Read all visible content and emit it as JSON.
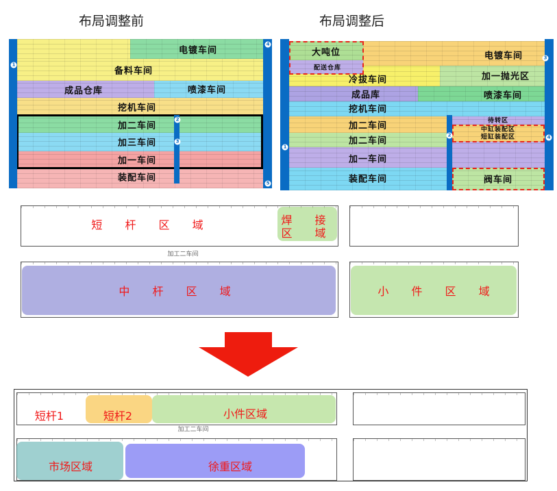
{
  "titles": {
    "before": "布局调整前",
    "after": "布局调整后"
  },
  "before_layout": {
    "zones": [
      "电镀车间",
      "备料车间",
      "成品仓库",
      "喷漆车间",
      "挖机车间",
      "加二车间",
      "加三车间",
      "加一车间",
      "装配车间"
    ],
    "markers": [
      "1",
      "2",
      "3",
      "4",
      "5"
    ]
  },
  "after_layout": {
    "zones": [
      "大吨位",
      "配送仓库",
      "电镀车间",
      "冷拔车间",
      "加一抛光区",
      "成品库",
      "喷漆车间",
      "挖机车间",
      "待转区",
      "加二车间",
      "中缸装配区",
      "短缸装配区",
      "加二车间",
      "加一车间",
      "装配车间",
      "阀车间"
    ],
    "markers": [
      "1",
      "2",
      "3",
      "4"
    ]
  },
  "detail_before": {
    "hall": "加工二车间",
    "areas": [
      "短 杆 区 域",
      "焊 接",
      "区 域",
      "中 杆 区 域",
      "小 件 区 域"
    ]
  },
  "detail_after": {
    "hall": "加工二车间",
    "areas": [
      "短杆1",
      "短杆2",
      "小件区域",
      "市场区域",
      "徐重区域"
    ]
  },
  "colors": {
    "yellow": "#f7ef7a",
    "green": "#7fd99a",
    "purple": "#b7a6e6",
    "cyan": "#7fd7f2",
    "orange": "#f8cf6a",
    "red": "#f6a2a2",
    "blue_bar": "#0a6cc4",
    "arrow": "#ee1c0e"
  }
}
